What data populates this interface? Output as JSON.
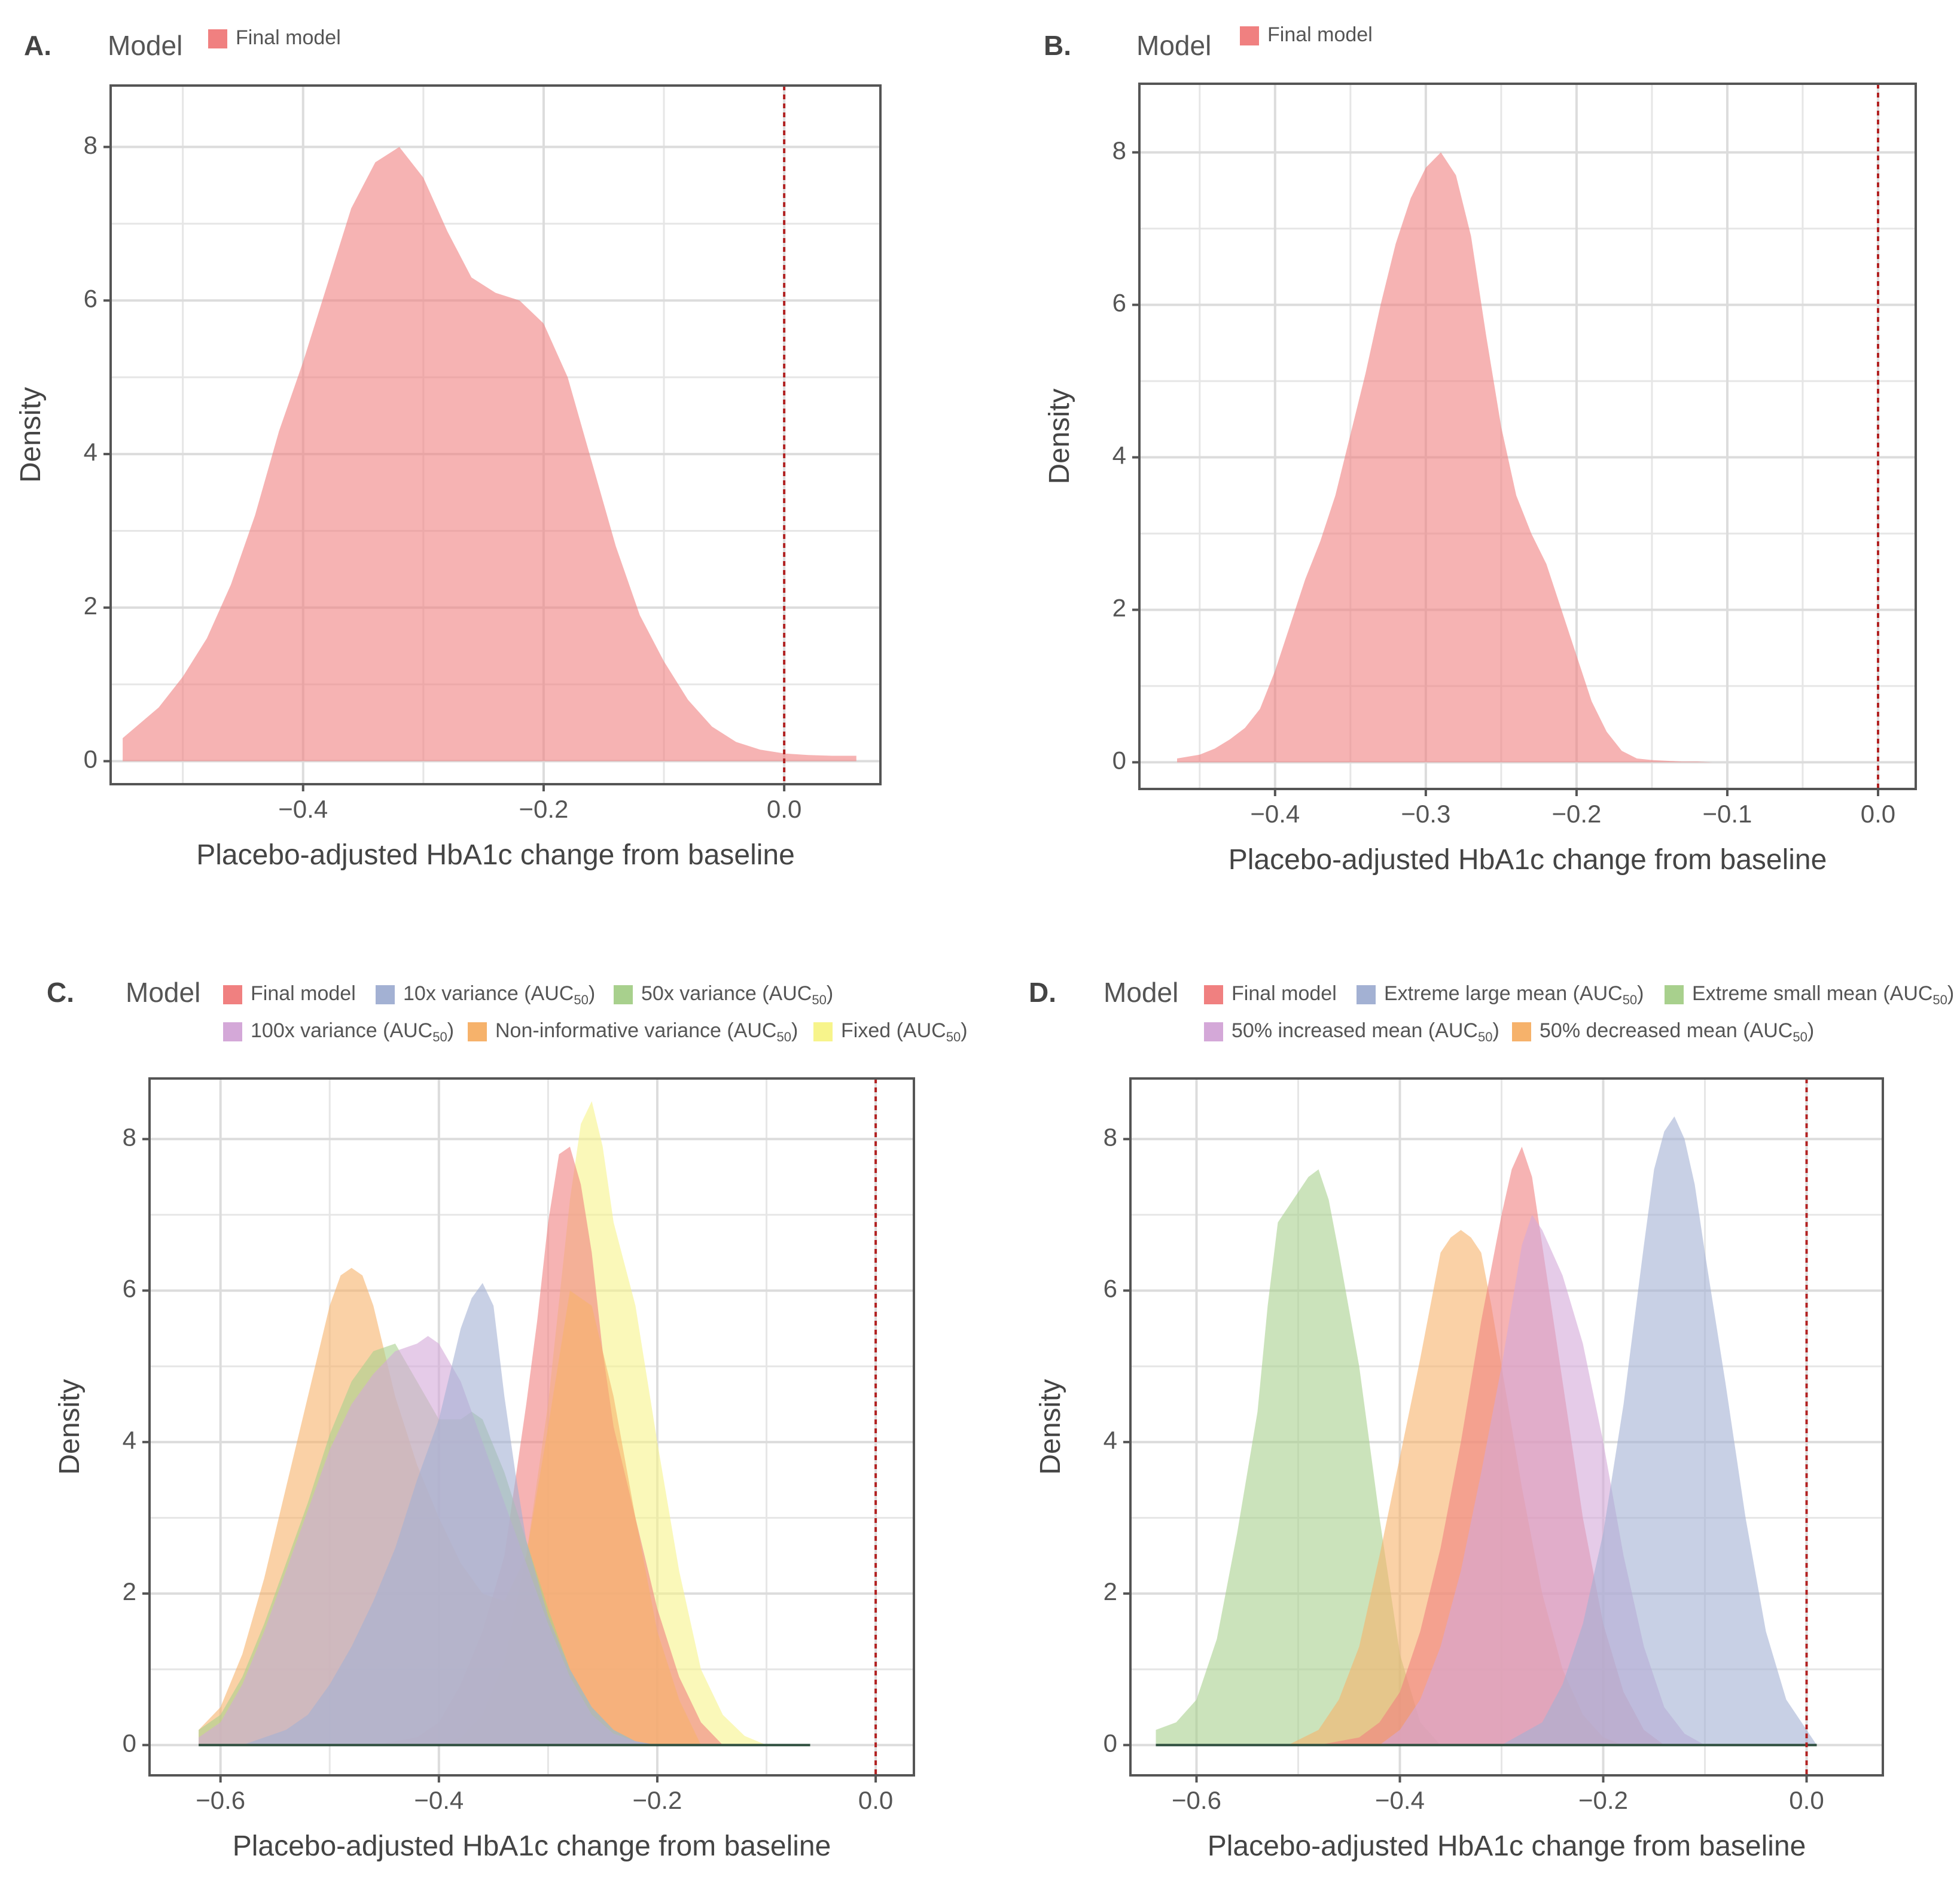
{
  "chart_data": [
    {
      "panel_label": "A.",
      "type": "area",
      "legend_title": "Model",
      "legend": [
        {
          "name": "Final model",
          "color": "#F08080"
        }
      ],
      "xlabel": "Placebo-adjusted HbA1c change from baseline",
      "ylabel": "Density",
      "xlim": [
        -0.56,
        0.08
      ],
      "ylim": [
        -0.3,
        8.8
      ],
      "xticks": [
        -0.4,
        -0.2,
        0.0
      ],
      "xtick_labels": [
        "−0.4",
        "−0.2",
        "0.0"
      ],
      "yticks": [
        0,
        2,
        4,
        6,
        8
      ],
      "ytick_labels": [
        "0",
        "2",
        "4",
        "6",
        "8"
      ],
      "ref_line_x": 0.0,
      "ref_line_color": "#B22222",
      "series": [
        {
          "name": "Final model",
          "color": "#F08080",
          "opacity": 0.6,
          "x": [
            -0.55,
            -0.52,
            -0.5,
            -0.48,
            -0.46,
            -0.44,
            -0.42,
            -0.4,
            -0.38,
            -0.36,
            -0.34,
            -0.32,
            -0.3,
            -0.28,
            -0.26,
            -0.24,
            -0.22,
            -0.2,
            -0.18,
            -0.16,
            -0.14,
            -0.12,
            -0.1,
            -0.08,
            -0.06,
            -0.04,
            -0.02,
            0.0,
            0.02,
            0.04,
            0.06
          ],
          "y": [
            0.3,
            0.7,
            1.1,
            1.6,
            2.3,
            3.2,
            4.3,
            5.2,
            6.2,
            7.2,
            7.8,
            8.0,
            7.6,
            6.9,
            6.3,
            6.1,
            6.0,
            5.7,
            5.0,
            3.9,
            2.8,
            1.9,
            1.3,
            0.8,
            0.45,
            0.25,
            0.15,
            0.1,
            0.08,
            0.07,
            0.07
          ]
        }
      ]
    },
    {
      "panel_label": "B.",
      "type": "area",
      "legend_title": "Model",
      "legend": [
        {
          "name": "Final model",
          "color": "#F08080"
        }
      ],
      "xlabel": "Placebo-adjusted HbA1c change from baseline",
      "ylabel": "Density",
      "xlim": [
        -0.49,
        0.025
      ],
      "ylim": [
        -0.35,
        8.9
      ],
      "xticks": [
        -0.4,
        -0.3,
        -0.2,
        -0.1,
        0.0
      ],
      "xtick_labels": [
        "−0.4",
        "−0.3",
        "−0.2",
        "−0.1",
        "0.0"
      ],
      "yticks": [
        0,
        2,
        4,
        6,
        8
      ],
      "ytick_labels": [
        "0",
        "2",
        "4",
        "6",
        "8"
      ],
      "ref_line_x": 0.0,
      "ref_line_color": "#B22222",
      "series": [
        {
          "name": "Final model",
          "color": "#F08080",
          "opacity": 0.6,
          "x": [
            -0.465,
            -0.45,
            -0.44,
            -0.43,
            -0.42,
            -0.41,
            -0.4,
            -0.39,
            -0.38,
            -0.37,
            -0.36,
            -0.35,
            -0.34,
            -0.33,
            -0.32,
            -0.31,
            -0.3,
            -0.29,
            -0.28,
            -0.27,
            -0.26,
            -0.25,
            -0.24,
            -0.23,
            -0.22,
            -0.21,
            -0.2,
            -0.19,
            -0.18,
            -0.17,
            -0.16,
            -0.15,
            -0.14,
            -0.13,
            -0.12,
            -0.11,
            -0.1
          ],
          "y": [
            0.05,
            0.1,
            0.18,
            0.3,
            0.45,
            0.7,
            1.2,
            1.8,
            2.4,
            2.9,
            3.5,
            4.3,
            5.1,
            6.0,
            6.8,
            7.4,
            7.8,
            8.0,
            7.7,
            6.9,
            5.6,
            4.4,
            3.5,
            3.0,
            2.6,
            2.0,
            1.4,
            0.8,
            0.4,
            0.15,
            0.05,
            0.03,
            0.02,
            0.01,
            0.01,
            0.0,
            0.0
          ]
        }
      ]
    },
    {
      "panel_label": "C.",
      "type": "area",
      "legend_title": "Model",
      "legend": [
        {
          "name": "Final model",
          "sub": "",
          "color": "#F08080"
        },
        {
          "name": "10x variance (AUC",
          "sub": "50",
          "color": "#A3B1D3"
        },
        {
          "name": "50x variance (AUC",
          "sub": "50",
          "color": "#A8D08D"
        },
        {
          "name": "100x variance (AUC",
          "sub": "50",
          "color": "#D4A8D8"
        },
        {
          "name": "Non-informative variance (AUC",
          "sub": "50",
          "color": "#F6B26B"
        },
        {
          "name": "Fixed (AUC",
          "sub": "50",
          "color": "#F7F48B"
        }
      ],
      "xlabel": "Placebo-adjusted HbA1c change from baseline",
      "ylabel": "Density",
      "xlim": [
        -0.665,
        0.035
      ],
      "ylim": [
        -0.4,
        8.8
      ],
      "xticks": [
        -0.6,
        -0.4,
        -0.2,
        0.0
      ],
      "xtick_labels": [
        "−0.6",
        "−0.4",
        "−0.2",
        "0.0"
      ],
      "yticks": [
        0,
        2,
        4,
        6,
        8
      ],
      "ytick_labels": [
        "0",
        "2",
        "4",
        "6",
        "8"
      ],
      "ref_line_x": 0.0,
      "ref_line_color": "#B22222",
      "baseline_range": [
        -0.62,
        -0.06
      ],
      "series": [
        {
          "name": "Fixed",
          "color": "#F7F48B",
          "opacity": 0.6,
          "x": [
            -0.4,
            -0.38,
            -0.36,
            -0.34,
            -0.32,
            -0.3,
            -0.28,
            -0.27,
            -0.26,
            -0.25,
            -0.24,
            -0.22,
            -0.2,
            -0.18,
            -0.16,
            -0.14,
            -0.12,
            -0.1
          ],
          "y": [
            0.0,
            0.1,
            0.4,
            1.1,
            2.5,
            4.5,
            7.2,
            8.2,
            8.5,
            7.9,
            6.9,
            5.8,
            4.0,
            2.3,
            1.0,
            0.4,
            0.12,
            0.0
          ]
        },
        {
          "name": "Final model",
          "color": "#F08080",
          "opacity": 0.6,
          "x": [
            -0.46,
            -0.42,
            -0.4,
            -0.38,
            -0.36,
            -0.34,
            -0.32,
            -0.31,
            -0.3,
            -0.29,
            -0.28,
            -0.27,
            -0.26,
            -0.25,
            -0.24,
            -0.22,
            -0.2,
            -0.18,
            -0.16,
            -0.14
          ],
          "y": [
            0.0,
            0.1,
            0.3,
            0.8,
            1.5,
            2.5,
            4.5,
            5.6,
            6.9,
            7.8,
            7.9,
            7.4,
            6.5,
            5.2,
            4.2,
            3.0,
            1.8,
            0.9,
            0.3,
            0.0
          ]
        },
        {
          "name": "Non-informative variance",
          "color": "#F6B26B",
          "opacity": 0.6,
          "x": [
            -0.62,
            -0.6,
            -0.58,
            -0.56,
            -0.54,
            -0.52,
            -0.5,
            -0.49,
            -0.48,
            -0.47,
            -0.46,
            -0.44,
            -0.42,
            -0.4,
            -0.38,
            -0.36,
            -0.34,
            -0.32,
            -0.3,
            -0.28,
            -0.26,
            -0.24,
            -0.22,
            -0.2,
            -0.18,
            -0.16
          ],
          "y": [
            0.2,
            0.5,
            1.2,
            2.2,
            3.4,
            4.6,
            5.8,
            6.2,
            6.3,
            6.2,
            5.8,
            4.6,
            3.7,
            3.0,
            2.4,
            2.0,
            1.9,
            2.5,
            4.2,
            6.0,
            5.8,
            4.6,
            3.0,
            1.5,
            0.6,
            0.0
          ]
        },
        {
          "name": "50x variance",
          "color": "#A8D08D",
          "opacity": 0.6,
          "x": [
            -0.62,
            -0.6,
            -0.58,
            -0.56,
            -0.54,
            -0.52,
            -0.5,
            -0.48,
            -0.46,
            -0.44,
            -0.42,
            -0.4,
            -0.38,
            -0.37,
            -0.36,
            -0.34,
            -0.32,
            -0.3,
            -0.28,
            -0.26,
            -0.24,
            -0.22,
            -0.2
          ],
          "y": [
            0.2,
            0.4,
            0.9,
            1.6,
            2.4,
            3.2,
            4.1,
            4.8,
            5.2,
            5.3,
            4.8,
            4.3,
            4.3,
            4.4,
            4.3,
            3.6,
            2.7,
            1.8,
            1.0,
            0.5,
            0.2,
            0.05,
            0.0
          ]
        },
        {
          "name": "100x variance",
          "color": "#D4A8D8",
          "opacity": 0.6,
          "x": [
            -0.62,
            -0.6,
            -0.58,
            -0.56,
            -0.54,
            -0.52,
            -0.5,
            -0.48,
            -0.46,
            -0.44,
            -0.42,
            -0.41,
            -0.4,
            -0.38,
            -0.36,
            -0.34,
            -0.32,
            -0.3,
            -0.28,
            -0.26,
            -0.24,
            -0.22,
            -0.2
          ],
          "y": [
            0.1,
            0.3,
            0.8,
            1.5,
            2.3,
            3.1,
            3.9,
            4.5,
            4.9,
            5.2,
            5.3,
            5.4,
            5.3,
            4.8,
            4.0,
            3.2,
            2.4,
            1.6,
            0.9,
            0.4,
            0.15,
            0.05,
            0.0
          ]
        },
        {
          "name": "10x variance",
          "color": "#A3B1D3",
          "opacity": 0.6,
          "x": [
            -0.58,
            -0.54,
            -0.52,
            -0.5,
            -0.48,
            -0.46,
            -0.44,
            -0.42,
            -0.4,
            -0.38,
            -0.37,
            -0.36,
            -0.35,
            -0.34,
            -0.33,
            -0.32,
            -0.3,
            -0.28,
            -0.26,
            -0.24,
            -0.22,
            -0.2
          ],
          "y": [
            0.0,
            0.2,
            0.4,
            0.8,
            1.3,
            1.9,
            2.6,
            3.5,
            4.3,
            5.5,
            5.9,
            6.1,
            5.8,
            4.6,
            3.6,
            2.7,
            1.7,
            1.0,
            0.5,
            0.2,
            0.05,
            0.0
          ]
        }
      ]
    },
    {
      "panel_label": "D.",
      "type": "area",
      "legend_title": "Model",
      "legend": [
        {
          "name": "Final model",
          "sub": "",
          "color": "#F08080"
        },
        {
          "name": "Extreme large mean (AUC",
          "sub": "50",
          "color": "#A3B1D3"
        },
        {
          "name": "Extreme small mean (AUC",
          "sub": "50",
          "color": "#A8D08D"
        },
        {
          "name": "50% increased mean (AUC",
          "sub": "50",
          "color": "#D4A8D8"
        },
        {
          "name": "50% decreased mean (AUC",
          "sub": "50",
          "color": "#F6B26B"
        }
      ],
      "xlabel": "Placebo-adjusted HbA1c change from baseline",
      "ylabel": "Density",
      "xlim": [
        -0.665,
        0.075
      ],
      "ylim": [
        -0.4,
        8.8
      ],
      "xticks": [
        -0.6,
        -0.4,
        -0.2,
        0.0
      ],
      "xtick_labels": [
        "−0.6",
        "−0.4",
        "−0.2",
        "0.0"
      ],
      "yticks": [
        0,
        2,
        4,
        6,
        8
      ],
      "ytick_labels": [
        "0",
        "2",
        "4",
        "6",
        "8"
      ],
      "ref_line_x": 0.0,
      "ref_line_color": "#B22222",
      "baseline_range": [
        -0.64,
        0.01
      ],
      "series": [
        {
          "name": "Extreme small mean",
          "color": "#A8D08D",
          "opacity": 0.6,
          "x": [
            -0.64,
            -0.62,
            -0.6,
            -0.58,
            -0.56,
            -0.54,
            -0.53,
            -0.52,
            -0.5,
            -0.49,
            -0.48,
            -0.47,
            -0.46,
            -0.44,
            -0.42,
            -0.4,
            -0.38,
            -0.36
          ],
          "y": [
            0.2,
            0.3,
            0.6,
            1.4,
            2.8,
            4.4,
            5.8,
            6.9,
            7.3,
            7.5,
            7.6,
            7.2,
            6.5,
            5.0,
            3.0,
            1.2,
            0.3,
            0.0
          ]
        },
        {
          "name": "50% decreased mean",
          "color": "#F6B26B",
          "opacity": 0.6,
          "x": [
            -0.51,
            -0.48,
            -0.46,
            -0.44,
            -0.42,
            -0.4,
            -0.38,
            -0.36,
            -0.35,
            -0.34,
            -0.33,
            -0.32,
            -0.31,
            -0.3,
            -0.28,
            -0.26,
            -0.24,
            -0.22,
            -0.2,
            -0.18
          ],
          "y": [
            0.0,
            0.2,
            0.6,
            1.3,
            2.5,
            3.8,
            5.1,
            6.5,
            6.7,
            6.8,
            6.7,
            6.5,
            5.8,
            5.0,
            3.4,
            2.0,
            1.0,
            0.4,
            0.1,
            0.0
          ]
        },
        {
          "name": "Final model",
          "color": "#F08080",
          "opacity": 0.6,
          "x": [
            -0.48,
            -0.44,
            -0.42,
            -0.4,
            -0.38,
            -0.36,
            -0.34,
            -0.32,
            -0.3,
            -0.29,
            -0.28,
            -0.27,
            -0.26,
            -0.24,
            -0.22,
            -0.2,
            -0.18,
            -0.16,
            -0.14
          ],
          "y": [
            0.0,
            0.1,
            0.3,
            0.7,
            1.5,
            2.6,
            4.0,
            5.6,
            7.0,
            7.6,
            7.9,
            7.5,
            6.6,
            4.8,
            3.0,
            1.6,
            0.7,
            0.2,
            0.0
          ]
        },
        {
          "name": "50% increased mean",
          "color": "#D4A8D8",
          "opacity": 0.6,
          "x": [
            -0.42,
            -0.4,
            -0.38,
            -0.36,
            -0.34,
            -0.32,
            -0.3,
            -0.28,
            -0.27,
            -0.26,
            -0.24,
            -0.22,
            -0.2,
            -0.18,
            -0.16,
            -0.14,
            -0.12,
            -0.1
          ],
          "y": [
            0.0,
            0.2,
            0.6,
            1.3,
            2.3,
            3.6,
            5.0,
            6.6,
            7.0,
            6.8,
            6.2,
            5.3,
            4.0,
            2.5,
            1.3,
            0.5,
            0.15,
            0.0
          ]
        },
        {
          "name": "Extreme large mean",
          "color": "#A3B1D3",
          "opacity": 0.6,
          "x": [
            -0.3,
            -0.26,
            -0.24,
            -0.22,
            -0.2,
            -0.18,
            -0.16,
            -0.15,
            -0.14,
            -0.13,
            -0.12,
            -0.11,
            -0.1,
            -0.08,
            -0.06,
            -0.04,
            -0.02,
            0.0,
            0.01
          ],
          "y": [
            0.0,
            0.3,
            0.8,
            1.6,
            2.8,
            4.5,
            6.6,
            7.6,
            8.1,
            8.3,
            8.0,
            7.4,
            6.5,
            4.8,
            3.0,
            1.5,
            0.6,
            0.2,
            0.0
          ]
        }
      ]
    }
  ]
}
